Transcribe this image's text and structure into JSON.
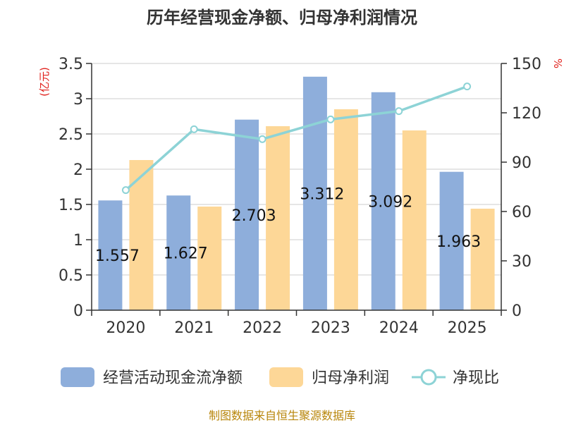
{
  "chart_data": {
    "type": "bar",
    "title": "历年经营现金净额、归母净利润情况",
    "categories": [
      "2020",
      "2021",
      "2022",
      "2023",
      "2024",
      "2025"
    ],
    "series": [
      {
        "name": "经营活动现金流净额",
        "type": "bar",
        "axis": "left",
        "color": "#8eaedb",
        "values": [
          1.557,
          1.627,
          2.703,
          3.312,
          3.092,
          1.963
        ],
        "labels": [
          "1.557",
          "1.627",
          "2.703",
          "3.312",
          "3.092",
          "1.963"
        ]
      },
      {
        "name": "归母净利润",
        "type": "bar",
        "axis": "left",
        "color": "#fdd797",
        "values": [
          2.13,
          1.47,
          2.61,
          2.85,
          2.55,
          1.44
        ]
      },
      {
        "name": "净现比",
        "type": "line",
        "axis": "right",
        "color": "#8dd3d6",
        "values": [
          73,
          110,
          104,
          116,
          121,
          136
        ]
      }
    ],
    "y_left": {
      "unit": "(亿元)",
      "min": 0,
      "max": 3.5,
      "ticks": [
        "0",
        "0.5",
        "1",
        "1.5",
        "2",
        "2.5",
        "3",
        "3.5"
      ]
    },
    "y_right": {
      "unit": "%",
      "min": 0,
      "max": 150,
      "ticks": [
        "0",
        "30",
        "60",
        "90",
        "120",
        "150"
      ]
    },
    "grid": true,
    "legend_position": "bottom",
    "source": "制图数据来自恒生聚源数据库"
  }
}
